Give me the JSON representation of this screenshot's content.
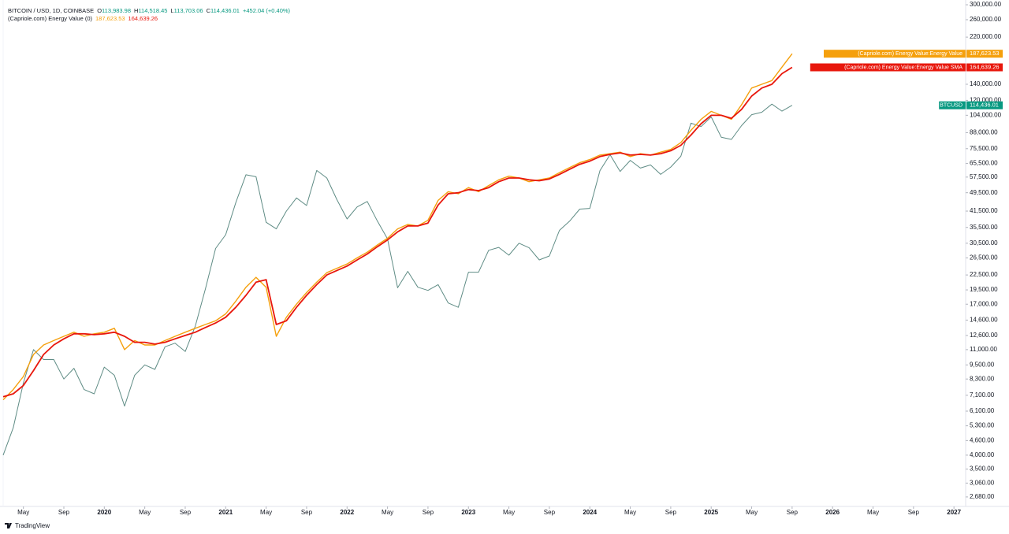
{
  "header": {
    "symbol": "BITCOIN / USD, 1D, COINBASE",
    "ohlc": [
      {
        "label": "O",
        "value": "113,983.98"
      },
      {
        "label": "H",
        "value": "114,518.45"
      },
      {
        "label": "L",
        "value": "113,703.06"
      },
      {
        "label": "C",
        "value": "114,436.01"
      }
    ],
    "change": "+452.04 (+0.40%)",
    "indicator": "(Capriole.com) Energy Value (0)",
    "indicator_values": [
      "187,623.53",
      "164,639.26"
    ]
  },
  "branding": "TradingView",
  "chart_data": {
    "type": "line",
    "log_scale": true,
    "x": [
      "2019-03",
      "2019-04",
      "2019-05",
      "2019-06",
      "2019-07",
      "2019-08",
      "2019-09",
      "2019-10",
      "2019-11",
      "2019-12",
      "2020-01",
      "2020-02",
      "2020-03",
      "2020-04",
      "2020-05",
      "2020-06",
      "2020-07",
      "2020-08",
      "2020-09",
      "2020-10",
      "2020-11",
      "2020-12",
      "2021-01",
      "2021-02",
      "2021-03",
      "2021-04",
      "2021-05",
      "2021-06",
      "2021-07",
      "2021-08",
      "2021-09",
      "2021-10",
      "2021-11",
      "2021-12",
      "2022-01",
      "2022-02",
      "2022-03",
      "2022-04",
      "2022-05",
      "2022-06",
      "2022-07",
      "2022-08",
      "2022-09",
      "2022-10",
      "2022-11",
      "2022-12",
      "2023-01",
      "2023-02",
      "2023-03",
      "2023-04",
      "2023-05",
      "2023-06",
      "2023-07",
      "2023-08",
      "2023-09",
      "2023-10",
      "2023-11",
      "2023-12",
      "2024-01",
      "2024-02",
      "2024-03",
      "2024-04",
      "2024-05",
      "2024-06",
      "2024-07",
      "2024-08",
      "2024-09",
      "2024-10",
      "2024-11",
      "2024-12",
      "2025-01",
      "2025-02",
      "2025-03",
      "2025-04",
      "2025-05",
      "2025-06",
      "2025-07",
      "2025-08",
      "2025-09"
    ],
    "series": [
      {
        "name": "(Capriole.com) Energy Value:Energy Value",
        "color": "#f5a00c",
        "width": 1.4,
        "last_label": "187,623.53",
        "values": [
          6800,
          7500,
          8500,
          10500,
          11500,
          12000,
          12500,
          13000,
          12500,
          12800,
          13000,
          13500,
          11000,
          12000,
          11500,
          11500,
          12000,
          12500,
          13000,
          13500,
          14000,
          14500,
          15500,
          17500,
          20000,
          22000,
          20000,
          12500,
          15000,
          17000,
          19000,
          21000,
          23000,
          24000,
          25000,
          26500,
          28000,
          30000,
          32000,
          35000,
          36500,
          36000,
          38000,
          46000,
          50000,
          49000,
          52000,
          50000,
          53000,
          56000,
          58000,
          57000,
          55000,
          56000,
          57000,
          60000,
          63000,
          66000,
          68000,
          71000,
          72000,
          73000,
          70000,
          72000,
          71000,
          73000,
          75000,
          80000,
          90000,
          100000,
          108000,
          104000,
          100000,
          115000,
          135000,
          140000,
          145000,
          165000,
          187623.53
        ]
      },
      {
        "name": "(Capriole.com) Energy Value:Energy Value SMA",
        "color": "#e8170c",
        "width": 1.8,
        "last_label": "164,639.26",
        "values": [
          7000,
          7200,
          7800,
          9000,
          10500,
          11500,
          12200,
          12800,
          12800,
          12700,
          12800,
          13000,
          12500,
          11800,
          11800,
          11600,
          11800,
          12200,
          12600,
          13000,
          13600,
          14200,
          15000,
          16500,
          18500,
          21000,
          21500,
          14000,
          14500,
          16500,
          18500,
          20500,
          22500,
          23500,
          24500,
          26000,
          27500,
          29500,
          31500,
          34000,
          36000,
          36000,
          37000,
          44000,
          49000,
          49500,
          51000,
          50500,
          52000,
          55000,
          57000,
          57000,
          56000,
          55500,
          56500,
          59000,
          62000,
          65000,
          67000,
          70000,
          71500,
          72500,
          71000,
          71500,
          71000,
          72000,
          74000,
          78000,
          86000,
          96000,
          104000,
          104000,
          101000,
          110000,
          125000,
          135000,
          140000,
          155000,
          164639.26
        ]
      },
      {
        "name": "BTCUSD",
        "color": "#5f8c85",
        "tag_color": "#089981",
        "width": 1,
        "last_label": "114,436.01",
        "values": [
          4000,
          5200,
          8000,
          11000,
          10000,
          10000,
          8300,
          9200,
          7500,
          7200,
          9300,
          8600,
          6400,
          8600,
          9500,
          9100,
          11300,
          11700,
          10800,
          13800,
          19700,
          29000,
          33100,
          45000,
          58800,
          57700,
          37300,
          35000,
          41500,
          47100,
          43800,
          61300,
          57000,
          46300,
          38500,
          43200,
          45500,
          37700,
          31800,
          19900,
          23300,
          20000,
          19400,
          20500,
          17200,
          16500,
          23100,
          23100,
          28500,
          29300,
          27200,
          30500,
          29200,
          26000,
          27000,
          34500,
          37700,
          42300,
          42600,
          61200,
          71300,
          60700,
          67500,
          62700,
          64600,
          59000,
          63300,
          70200,
          96400,
          93400,
          102400,
          84300,
          82500,
          94200,
          104600,
          107100,
          115700,
          108200,
          114436.01
        ]
      }
    ],
    "xlim": [
      "2019-03",
      "2027-02"
    ],
    "xticks": [
      {
        "value": "2019-05",
        "label": "May"
      },
      {
        "value": "2019-09",
        "label": "Sep"
      },
      {
        "value": "2020-01",
        "label": "2020"
      },
      {
        "value": "2020-05",
        "label": "May"
      },
      {
        "value": "2020-09",
        "label": "Sep"
      },
      {
        "value": "2021-01",
        "label": "2021"
      },
      {
        "value": "2021-05",
        "label": "May"
      },
      {
        "value": "2021-09",
        "label": "Sep"
      },
      {
        "value": "2022-01",
        "label": "2022"
      },
      {
        "value": "2022-05",
        "label": "May"
      },
      {
        "value": "2022-09",
        "label": "Sep"
      },
      {
        "value": "2023-01",
        "label": "2023"
      },
      {
        "value": "2023-05",
        "label": "May"
      },
      {
        "value": "2023-09",
        "label": "Sep"
      },
      {
        "value": "2024-01",
        "label": "2024"
      },
      {
        "value": "2024-05",
        "label": "May"
      },
      {
        "value": "2024-09",
        "label": "Sep"
      },
      {
        "value": "2025-01",
        "label": "2025"
      },
      {
        "value": "2025-05",
        "label": "May"
      },
      {
        "value": "2025-09",
        "label": "Sep"
      },
      {
        "value": "2026-01",
        "label": "2026"
      },
      {
        "value": "2026-05",
        "label": "May"
      },
      {
        "value": "2026-09",
        "label": "Sep"
      },
      {
        "value": "2027-01",
        "label": "2027"
      }
    ],
    "ylim": [
      2465,
      314000
    ],
    "yticks": [
      {
        "value": 300000,
        "label": "300,000.00"
      },
      {
        "value": 260000,
        "label": "260,000.00"
      },
      {
        "value": 220000,
        "label": "220,000.00"
      },
      {
        "value": 140000,
        "label": "140,000.00"
      },
      {
        "value": 120000,
        "label": "120,000.00"
      },
      {
        "value": 104000,
        "label": "104,000.00"
      },
      {
        "value": 88000,
        "label": "88,000.00"
      },
      {
        "value": 75500,
        "label": "75,500.00"
      },
      {
        "value": 65500,
        "label": "65,500.00"
      },
      {
        "value": 57500,
        "label": "57,500.00"
      },
      {
        "value": 49500,
        "label": "49,500.00"
      },
      {
        "value": 41500,
        "label": "41,500.00"
      },
      {
        "value": 35500,
        "label": "35,500.00"
      },
      {
        "value": 30500,
        "label": "30,500.00"
      },
      {
        "value": 26500,
        "label": "26,500.00"
      },
      {
        "value": 22500,
        "label": "22,500.00"
      },
      {
        "value": 19500,
        "label": "19,500.00"
      },
      {
        "value": 17000,
        "label": "17,000.00"
      },
      {
        "value": 14600,
        "label": "14,600.00"
      },
      {
        "value": 12600,
        "label": "12,600.00"
      },
      {
        "value": 11000,
        "label": "11,000.00"
      },
      {
        "value": 9500,
        "label": "9,500.00"
      },
      {
        "value": 8300,
        "label": "8,300.00"
      },
      {
        "value": 7100,
        "label": "7,100.00"
      },
      {
        "value": 6100,
        "label": "6,100.00"
      },
      {
        "value": 5300,
        "label": "5,300.00"
      },
      {
        "value": 4600,
        "label": "4,600.00"
      },
      {
        "value": 4000,
        "label": "4,000.00"
      },
      {
        "value": 3500,
        "label": "3,500.00"
      },
      {
        "value": 3060,
        "label": "3,060.00"
      },
      {
        "value": 2680,
        "label": "2,680.00"
      }
    ],
    "grid": false
  }
}
